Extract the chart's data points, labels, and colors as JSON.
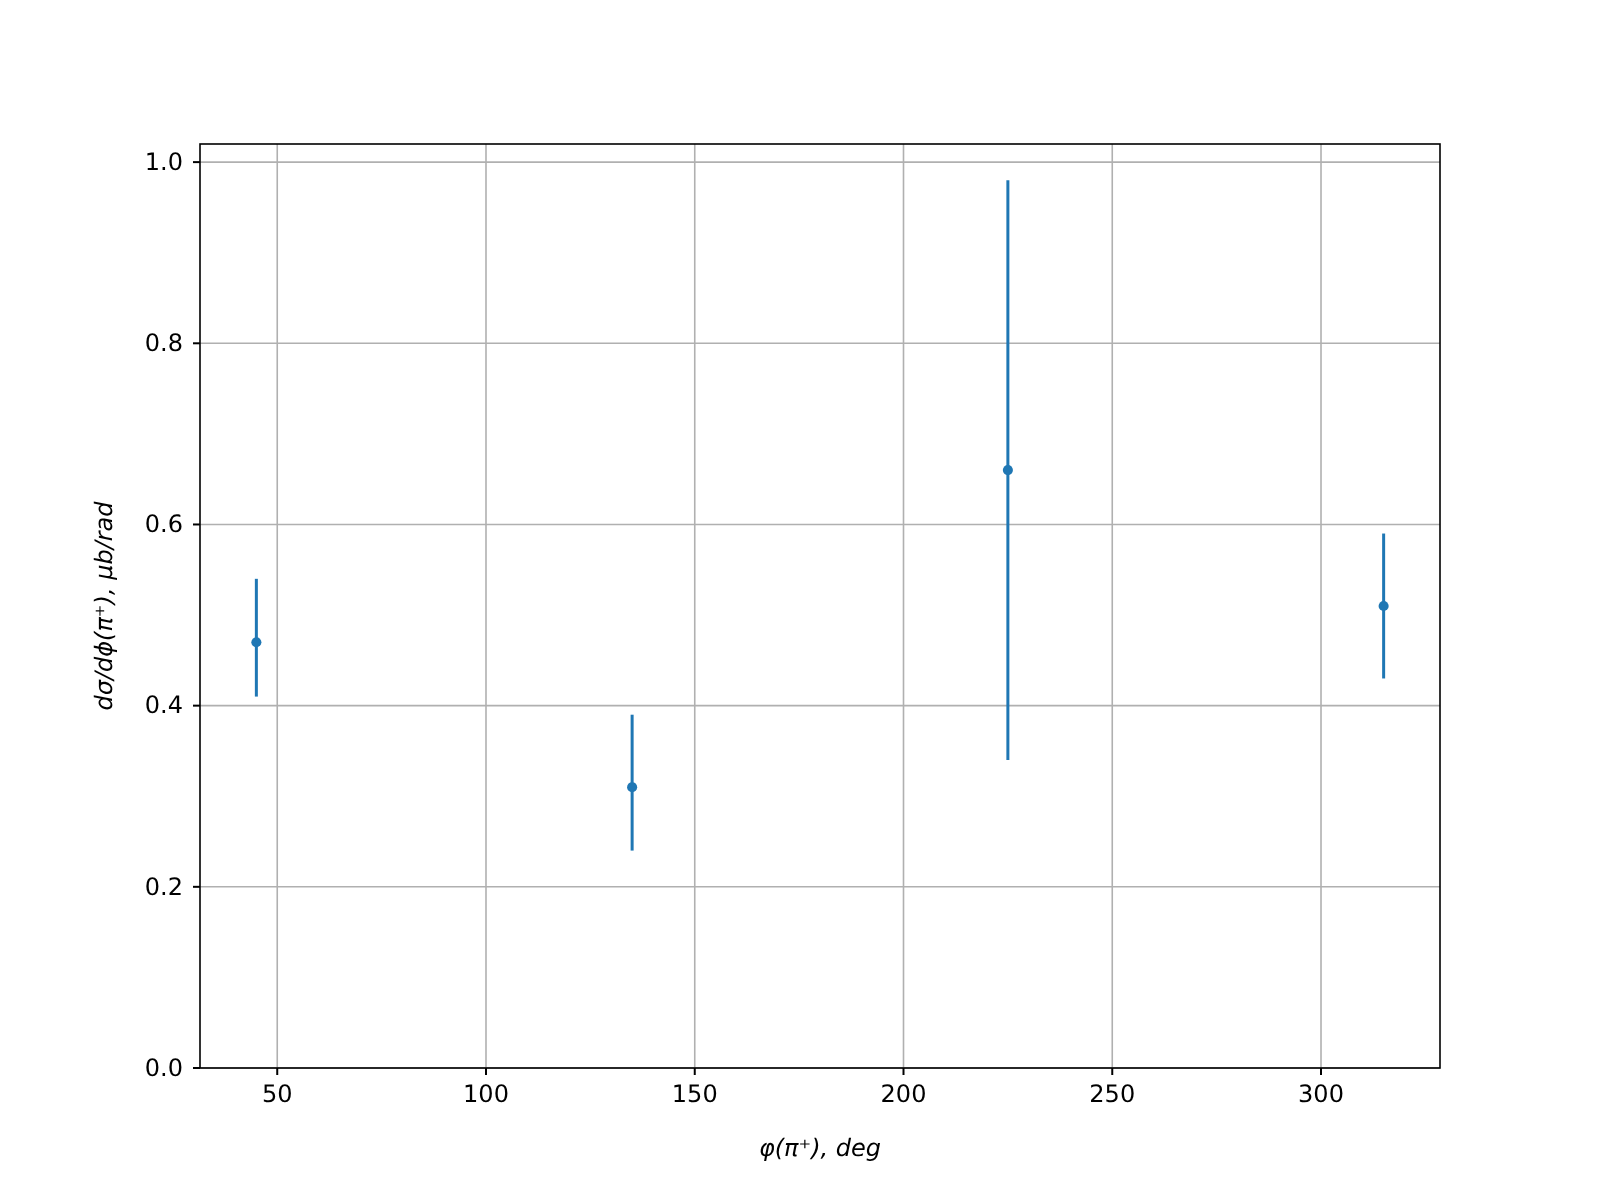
{
  "chart_data": {
    "type": "scatter",
    "xlabel": "φ(π⁺), deg",
    "ylabel": "dσ/dϕ(π⁺), μb/rad",
    "x": [
      45,
      135,
      225,
      315
    ],
    "series": [
      {
        "color": "#1f77b4",
        "values": [
          0.47,
          0.31,
          0.66,
          0.51
        ],
        "errors": [
          [
            0.41,
            0.54
          ],
          [
            0.24,
            0.39
          ],
          [
            0.34,
            0.98
          ],
          [
            0.43,
            0.59
          ]
        ]
      }
    ],
    "xlim": [
      31.5,
      328.5
    ],
    "xticks": [
      50,
      100,
      150,
      200,
      250,
      300
    ],
    "ylim": [
      0,
      1.02
    ],
    "yticks": [
      {
        "value": 0,
        "label": "0.0"
      },
      0.2,
      0.4,
      0.6,
      0.8,
      {
        "value": 1,
        "label": "1.0"
      }
    ],
    "grid": true,
    "marker": "circle"
  }
}
